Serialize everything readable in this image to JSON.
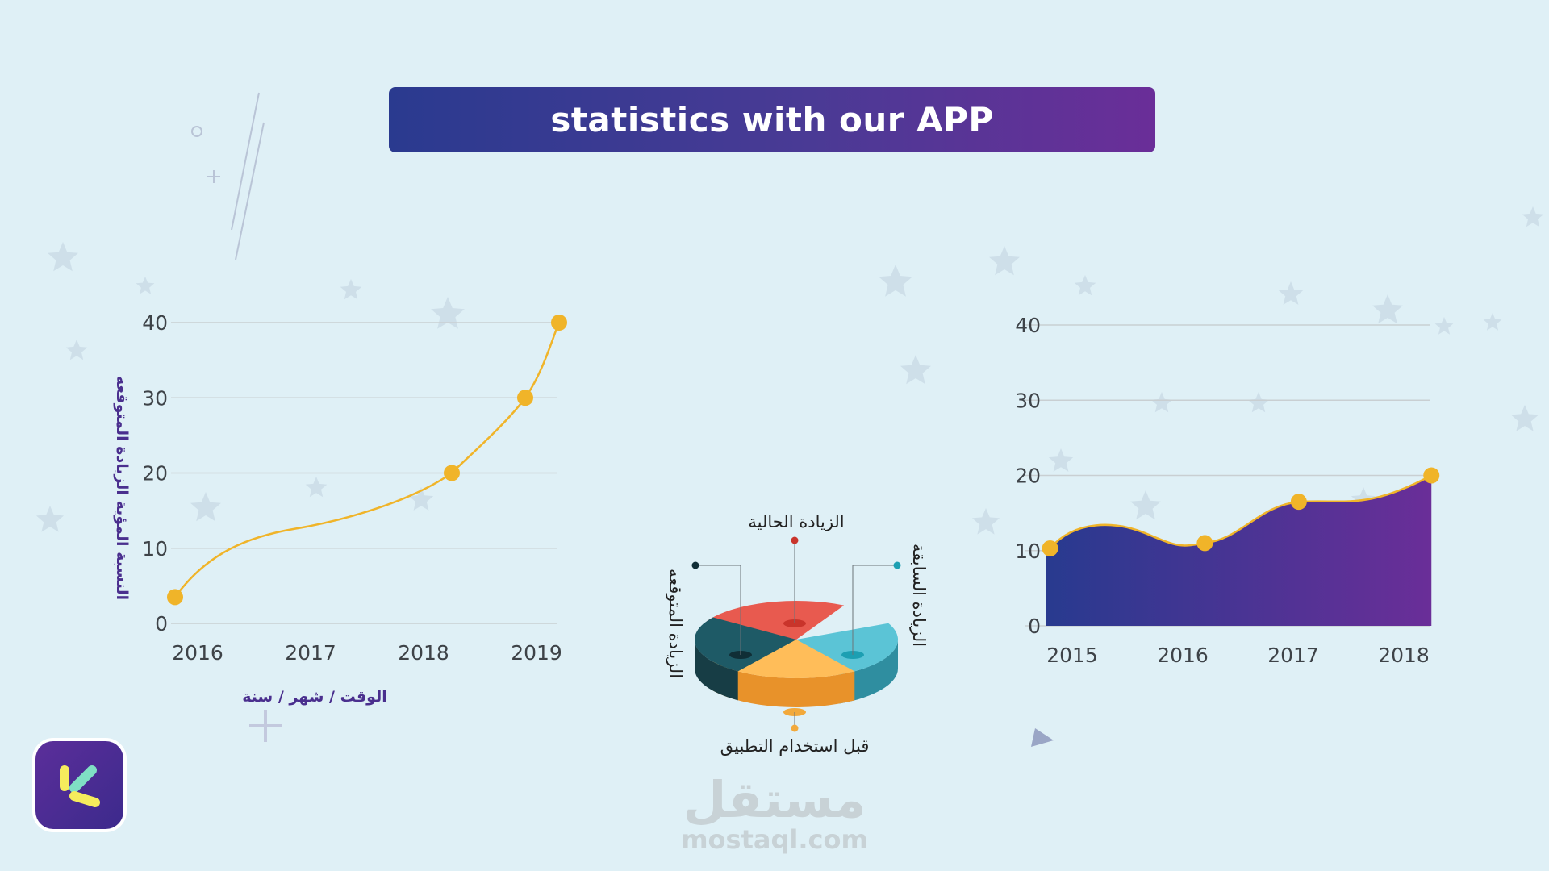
{
  "title": "statistics with our APP",
  "colors": {
    "accent_purple": "#4a2f8e",
    "point_yellow": "#f0b429",
    "area_start": "#283a8f",
    "area_end": "#6a2e98"
  },
  "chart_data": [
    {
      "type": "line",
      "title": "",
      "xlabel": "الوقت / شهر / سنة",
      "ylabel": "النسبة المؤية الزيادة المتوقعه",
      "categories": [
        "2016",
        "2017",
        "2018",
        "2019"
      ],
      "yticks": [
        "0",
        "10",
        "20",
        "30",
        "40"
      ],
      "ylim": [
        0,
        40
      ],
      "grid": true,
      "points": [
        {
          "x": 2015.8,
          "y": 3.5
        },
        {
          "x": 2018.25,
          "y": 20
        },
        {
          "x": 2018.9,
          "y": 30
        },
        {
          "x": 2019.2,
          "y": 40
        }
      ]
    },
    {
      "type": "pie",
      "title": "",
      "slices": [
        {
          "label": "الزيادة الحالية",
          "value": 25,
          "color": "#e85a4f"
        },
        {
          "label": "الزيادة السابقة",
          "value": 25,
          "color": "#5bc4d6"
        },
        {
          "label": "قبل استخدام التطبيق",
          "value": 25,
          "color": "#ffbd59"
        },
        {
          "label": "الزيادة المتوقعه",
          "value": 25,
          "color": "#1e5a66"
        }
      ]
    },
    {
      "type": "area",
      "title": "",
      "xlabel": "",
      "ylabel": "",
      "categories": [
        "2015",
        "2016",
        "2017",
        "2018"
      ],
      "yticks": [
        "0",
        "10",
        "20",
        "30",
        "40"
      ],
      "ylim": [
        0,
        40
      ],
      "grid": true,
      "points": [
        {
          "x": 2014.8,
          "y": 10.3
        },
        {
          "x": 2016.2,
          "y": 11
        },
        {
          "x": 2017.05,
          "y": 16.5
        },
        {
          "x": 2018.25,
          "y": 20
        }
      ]
    }
  ],
  "watermark": {
    "arabic": "مستقل",
    "url": "mostaql.com"
  }
}
